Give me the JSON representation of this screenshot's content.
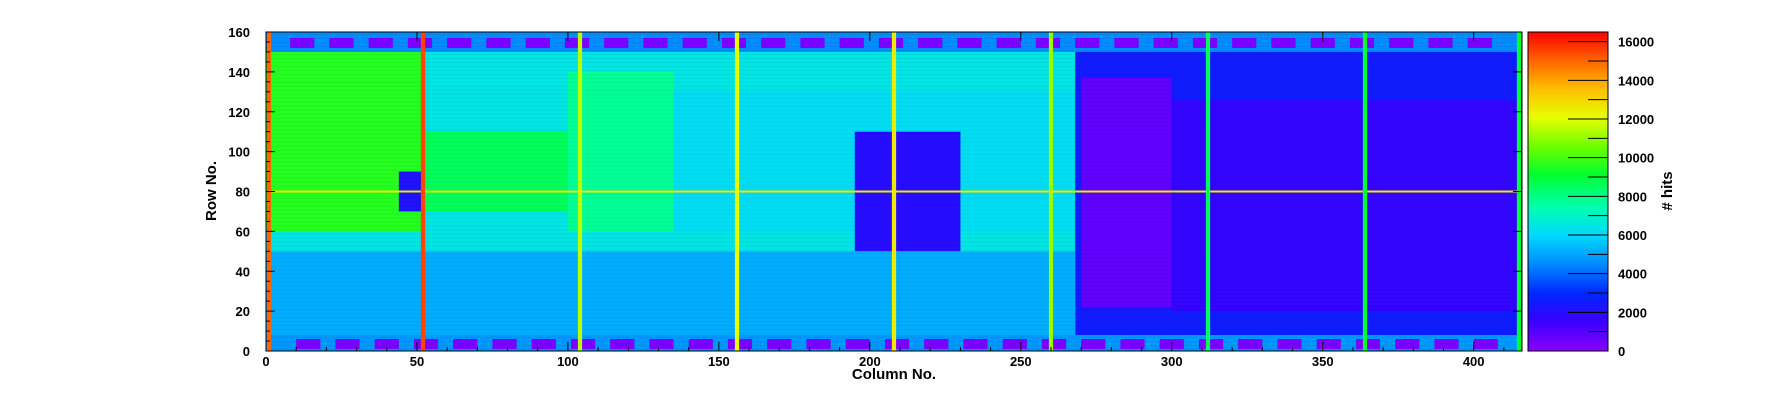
{
  "chart_data": {
    "type": "heatmap",
    "title": "",
    "xlabel": "Column No.",
    "ylabel": "Row No.",
    "zlabel": "# hits",
    "xlim": [
      0,
      416
    ],
    "ylim": [
      0,
      160
    ],
    "zlim": [
      0,
      16500
    ],
    "x_ticks": [
      0,
      50,
      100,
      150,
      200,
      250,
      300,
      350,
      400
    ],
    "y_ticks": [
      0,
      20,
      40,
      60,
      80,
      100,
      120,
      140,
      160
    ],
    "z_ticks": [
      0,
      2000,
      4000,
      6000,
      8000,
      10000,
      12000,
      14000,
      16000
    ],
    "colormap": [
      "#8a00ff",
      "#3b00ff",
      "#0026ff",
      "#0088ff",
      "#00d8ff",
      "#00ffb0",
      "#00ff30",
      "#6cff00",
      "#e6ff00",
      "#ffc000",
      "#ff6600",
      "#ff0000"
    ],
    "background_level": 6500,
    "regions": [
      {
        "x": [
          0,
          52
        ],
        "y": [
          60,
          160
        ],
        "z": 9500
      },
      {
        "x": [
          52,
          100
        ],
        "y": [
          70,
          110
        ],
        "z": 8500
      },
      {
        "x": [
          100,
          135
        ],
        "y": [
          60,
          140
        ],
        "z": 7800
      },
      {
        "x": [
          135,
          270
        ],
        "y": [
          60,
          130
        ],
        "z": 6200
      },
      {
        "x": [
          268,
          416
        ],
        "y": [
          0,
          160
        ],
        "z": 2600
      },
      {
        "x": [
          270,
          300
        ],
        "y": [
          22,
          137
        ],
        "z": 800
      },
      {
        "x": [
          300,
          416
        ],
        "y": [
          20,
          126
        ],
        "z": 1700
      },
      {
        "x": [
          195,
          230
        ],
        "y": [
          50,
          110
        ],
        "z": 2000
      },
      {
        "x": [
          44,
          52
        ],
        "y": [
          70,
          90
        ],
        "z": 2200
      },
      {
        "x": [
          0,
          268
        ],
        "y": [
          0,
          50
        ],
        "z": 5200
      },
      {
        "x": [
          0,
          416
        ],
        "y": [
          150,
          160
        ],
        "z": 4600
      },
      {
        "x": [
          0,
          416
        ],
        "y": [
          0,
          8
        ],
        "z": 4800
      }
    ],
    "hot_columns": [
      {
        "x": 1,
        "z": 15000
      },
      {
        "x": 52,
        "z": 15500
      },
      {
        "x": 104,
        "z": 11500
      },
      {
        "x": 156,
        "z": 12000
      },
      {
        "x": 208,
        "z": 12500
      },
      {
        "x": 260,
        "z": 11000
      },
      {
        "x": 312,
        "z": 8500
      },
      {
        "x": 364,
        "z": 9000
      },
      {
        "x": 415,
        "z": 9000
      }
    ],
    "hot_rows": [
      {
        "y": 80,
        "z": 12500
      }
    ],
    "low_pads": [
      {
        "y": [
          152,
          157
        ],
        "x_start": 8,
        "x_end": 410,
        "w": 8,
        "gap": 13,
        "z": 300
      },
      {
        "y": [
          1,
          6
        ],
        "x_start": 10,
        "x_end": 410,
        "w": 8,
        "gap": 13,
        "z": 300
      }
    ]
  }
}
